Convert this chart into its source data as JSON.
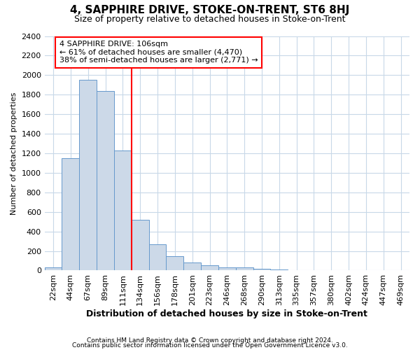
{
  "title": "4, SAPPHIRE DRIVE, STOKE-ON-TRENT, ST6 8HJ",
  "subtitle": "Size of property relative to detached houses in Stoke-on-Trent",
  "xlabel": "Distribution of detached houses by size in Stoke-on-Trent",
  "ylabel": "Number of detached properties",
  "categories": [
    "22sqm",
    "44sqm",
    "67sqm",
    "89sqm",
    "111sqm",
    "134sqm",
    "156sqm",
    "178sqm",
    "201sqm",
    "223sqm",
    "246sqm",
    "268sqm",
    "290sqm",
    "313sqm",
    "335sqm",
    "357sqm",
    "380sqm",
    "402sqm",
    "424sqm",
    "447sqm",
    "469sqm"
  ],
  "values": [
    35,
    1150,
    1950,
    1840,
    1225,
    520,
    270,
    150,
    80,
    50,
    35,
    30,
    15,
    8,
    4,
    4,
    2,
    2,
    1,
    1,
    1
  ],
  "bar_color": "#ccd9e8",
  "bar_edge_color": "#6699cc",
  "vline_x_index": 4,
  "vline_color": "red",
  "annotation_text": "4 SAPPHIRE DRIVE: 106sqm\n← 61% of detached houses are smaller (4,470)\n38% of semi-detached houses are larger (2,771) →",
  "annotation_box_color": "white",
  "annotation_box_edge_color": "red",
  "ylim": [
    0,
    2400
  ],
  "yticks": [
    0,
    200,
    400,
    600,
    800,
    1000,
    1200,
    1400,
    1600,
    1800,
    2000,
    2200,
    2400
  ],
  "footer_line1": "Contains HM Land Registry data © Crown copyright and database right 2024.",
  "footer_line2": "Contains public sector information licensed under the Open Government Licence v3.0.",
  "title_fontsize": 11,
  "subtitle_fontsize": 9,
  "xlabel_fontsize": 9,
  "ylabel_fontsize": 8,
  "annot_fontsize": 8,
  "tick_fontsize": 8,
  "footer_fontsize": 6.5,
  "background_color": "#ffffff",
  "grid_color": "#c8d8e8"
}
